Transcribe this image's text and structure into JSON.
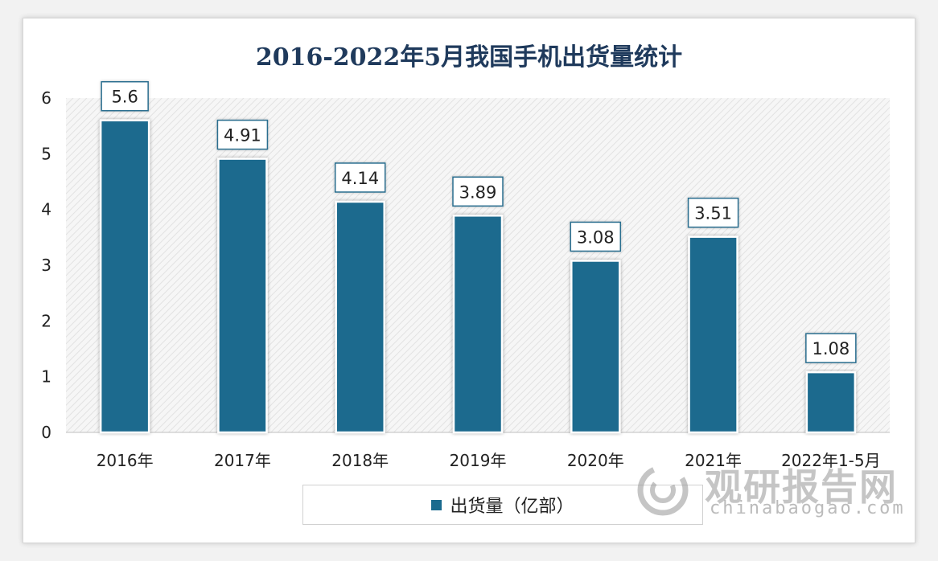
{
  "chart_data": {
    "type": "bar",
    "title": "2016-2022年5月我国手机出货量统计",
    "categories": [
      "2016年",
      "2017年",
      "2018年",
      "2019年",
      "2020年",
      "2021年",
      "2022年1-5月"
    ],
    "series": [
      {
        "name": "出货量（亿部）",
        "values": [
          5.6,
          4.91,
          4.14,
          3.89,
          3.08,
          3.51,
          1.08
        ]
      }
    ],
    "data_labels": [
      "5.6",
      "4.91",
      "4.14",
      "3.89",
      "3.08",
      "3.51",
      "1.08"
    ],
    "ylim": [
      0,
      6
    ],
    "yticks": [
      "0",
      "1",
      "2",
      "3",
      "4",
      "5",
      "6"
    ],
    "grid": false,
    "legend_position": "bottom",
    "bar_color": "#1a6a8e",
    "plot_background": "hatched-light-gray"
  },
  "legend": {
    "label": "出货量（亿部）"
  },
  "watermark": {
    "name": "观研报告网",
    "url": "chinabaogao.com"
  }
}
